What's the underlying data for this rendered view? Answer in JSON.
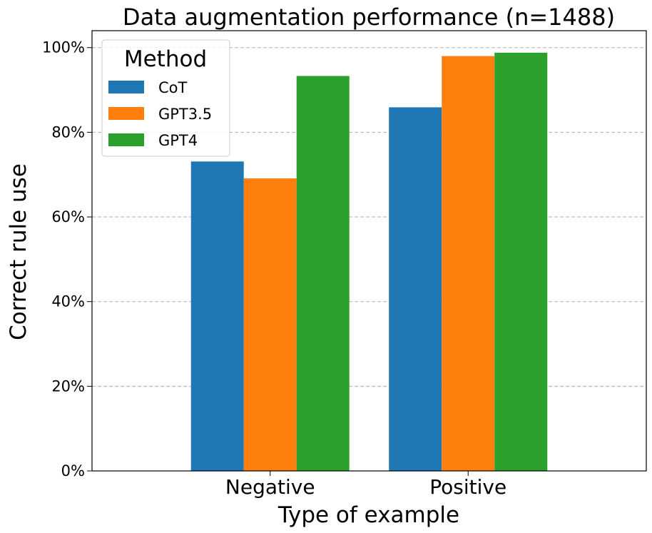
{
  "chart_data": {
    "type": "bar",
    "title": "Data augmentation performance (n=1488)",
    "xlabel": "Type of example",
    "ylabel": "Correct rule use",
    "categories": [
      "Negative",
      "Positive"
    ],
    "series": [
      {
        "name": "CoT",
        "color": "#1f77b4",
        "values": [
          73.1,
          85.9
        ]
      },
      {
        "name": "GPT3.5",
        "color": "#ff7f0e",
        "values": [
          69.1,
          98.0
        ]
      },
      {
        "name": "GPT4",
        "color": "#2ca02c",
        "values": [
          93.3,
          98.8
        ]
      }
    ],
    "ylim": [
      0,
      104
    ],
    "yticks": [
      0,
      20,
      40,
      60,
      80,
      100
    ],
    "ytick_labels": [
      "0%",
      "20%",
      "40%",
      "60%",
      "80%",
      "100%"
    ],
    "grid": "y-dashed",
    "legend": {
      "title": "Method",
      "placement": "top-left"
    }
  }
}
